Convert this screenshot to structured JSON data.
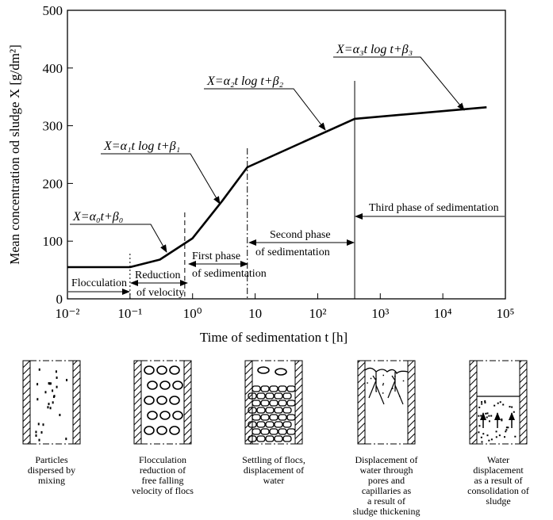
{
  "chart_data": {
    "type": "line",
    "xlabel": "Time of sedimentation t [h]",
    "ylabel": "Mean concentration od sludge X [g/dm²]",
    "xscale": "log",
    "xlim": [
      0.01,
      100000
    ],
    "xticks": [
      {
        "value": 0.01,
        "label": "10⁻²"
      },
      {
        "value": 0.1,
        "label": "10⁻¹"
      },
      {
        "value": 1,
        "label": "10⁰"
      },
      10,
      {
        "value": 100,
        "label": "10²"
      },
      {
        "value": 1000,
        "label": "10³"
      },
      {
        "value": 10000,
        "label": "10⁴"
      },
      {
        "value": 100000,
        "label": "10⁵"
      }
    ],
    "ylim": [
      0,
      500
    ],
    "yticks": [
      0,
      100,
      200,
      300,
      400,
      500
    ],
    "series": [
      {
        "color": "#000000",
        "x": [
          0.01,
          0.1,
          0.3,
          1,
          3,
          7.5,
          390,
          50000
        ],
        "values": [
          55,
          55,
          68,
          105,
          170,
          228,
          312,
          332
        ]
      }
    ],
    "phase_boundaries": [
      0.1,
      0.75,
      7.5,
      390
    ],
    "formulas": [
      "X=α₀t+β₀",
      "X=α₁t log t+β₁",
      "X=α₂t log t+β₂",
      "X=α₃t log t+β₃"
    ],
    "phases": [
      [
        "Flocculation"
      ],
      [
        "Reduction",
        "of velocity"
      ],
      [
        "First phase",
        "of sedimentation"
      ],
      [
        "Second phase",
        "of sedimentation"
      ],
      [
        "Third phase of sedimentation"
      ]
    ]
  },
  "panels": [
    {
      "caption": [
        "Particles",
        "dispersed by",
        "mixing"
      ]
    },
    {
      "caption": [
        "Flocculation",
        "reduction of",
        "free falling",
        "velocity of flocs"
      ]
    },
    {
      "caption": [
        "Settling of flocs,",
        "displacement of",
        "water"
      ]
    },
    {
      "caption": [
        "Displacement of",
        "water through",
        "pores and",
        "capillaries as",
        "a result of",
        "sludge thickening"
      ]
    },
    {
      "caption": [
        "Water",
        "displacement",
        "as a result of",
        "consolidation of",
        "sludge"
      ]
    }
  ]
}
